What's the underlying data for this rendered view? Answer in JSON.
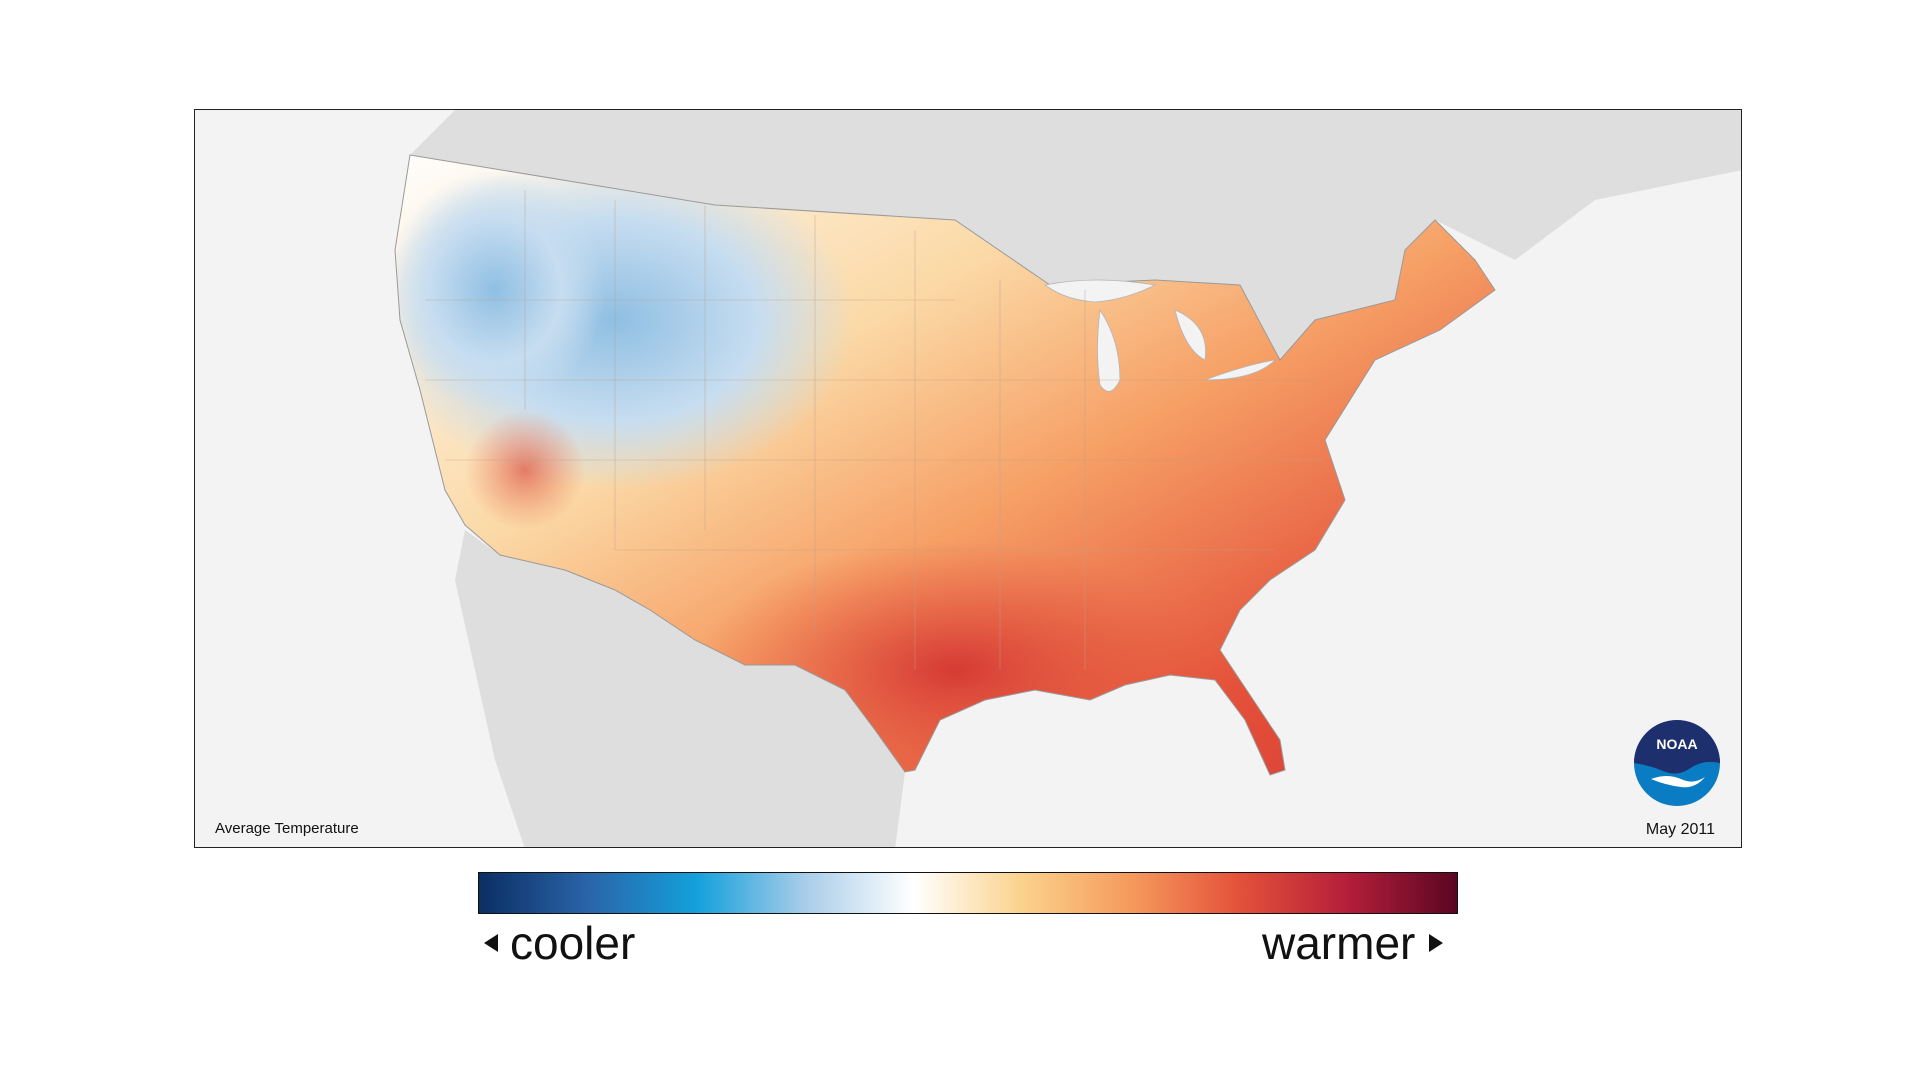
{
  "map": {
    "caption_left": "Average Temperature",
    "caption_right": "May 2011",
    "logo_text": "NOAA",
    "background_color": "#f3f3f3",
    "land_color": "#dedede"
  },
  "legend": {
    "low_label": "cooler",
    "high_label": "warmer",
    "gradient_colors": [
      "#0b2e63",
      "#2a64a8",
      "#13a0db",
      "#a9cde9",
      "#ffffff",
      "#fbd28c",
      "#f59a5c",
      "#e4513a",
      "#b41e3a",
      "#5a0623"
    ]
  }
}
